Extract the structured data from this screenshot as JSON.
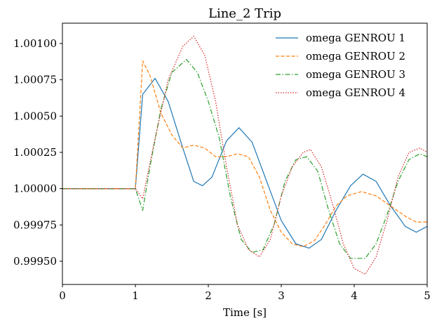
{
  "chart_data": {
    "type": "line",
    "title": "Line_2 Trip",
    "xlabel": "Time [s]",
    "ylabel": "",
    "xlim": [
      0,
      5
    ],
    "ylim": [
      0.99934,
      1.00114
    ],
    "xticks": [
      0,
      1,
      2,
      3,
      4,
      5
    ],
    "xtick_labels": [
      "0",
      "1",
      "2",
      "3",
      "4",
      "5"
    ],
    "yticks": [
      0.9995,
      0.99975,
      1.0,
      1.00025,
      1.0005,
      1.00075,
      1.001
    ],
    "ytick_labels": [
      "0.99950",
      "0.99975",
      "1.00000",
      "1.00025",
      "1.00050",
      "1.00075",
      "1.00100"
    ],
    "grid": false,
    "legend_position": "top-right",
    "series": [
      {
        "name": "omega GENROU 1",
        "color": "#1f77b4",
        "dash": "solid",
        "points": [
          [
            0,
            1.0
          ],
          [
            1.0,
            1.0
          ],
          [
            1.1,
            1.00065
          ],
          [
            1.27,
            1.00076
          ],
          [
            1.45,
            1.0006
          ],
          [
            1.65,
            1.00028
          ],
          [
            1.8,
            1.00005
          ],
          [
            1.92,
            1.00002
          ],
          [
            2.05,
            1.00008
          ],
          [
            2.25,
            1.00033
          ],
          [
            2.42,
            1.00042
          ],
          [
            2.6,
            1.00032
          ],
          [
            2.8,
            1.00005
          ],
          [
            3.0,
            0.99978
          ],
          [
            3.2,
            0.99962
          ],
          [
            3.38,
            0.99959
          ],
          [
            3.55,
            0.99965
          ],
          [
            3.75,
            0.99985
          ],
          [
            3.95,
            1.00002
          ],
          [
            4.12,
            1.0001
          ],
          [
            4.3,
            1.00005
          ],
          [
            4.5,
            0.99988
          ],
          [
            4.7,
            0.99974
          ],
          [
            4.85,
            0.9997
          ],
          [
            5.0,
            0.99974
          ]
        ]
      },
      {
        "name": "omega GENROU 2",
        "color": "#ff7f0e",
        "dash": "dashed",
        "points": [
          [
            0,
            1.0
          ],
          [
            1.0,
            1.0
          ],
          [
            1.1,
            1.00088
          ],
          [
            1.2,
            1.00078
          ],
          [
            1.35,
            1.00052
          ],
          [
            1.5,
            1.00037
          ],
          [
            1.65,
            1.00028
          ],
          [
            1.8,
            1.0003
          ],
          [
            1.95,
            1.00028
          ],
          [
            2.1,
            1.00022
          ],
          [
            2.25,
            1.00022
          ],
          [
            2.4,
            1.00024
          ],
          [
            2.55,
            1.00022
          ],
          [
            2.7,
            1.00008
          ],
          [
            2.85,
            0.99985
          ],
          [
            3.0,
            0.9997
          ],
          [
            3.15,
            0.99962
          ],
          [
            3.3,
            0.9996
          ],
          [
            3.45,
            0.99964
          ],
          [
            3.6,
            0.99975
          ],
          [
            3.75,
            0.99988
          ],
          [
            3.9,
            0.99995
          ],
          [
            4.1,
            0.99998
          ],
          [
            4.3,
            0.99995
          ],
          [
            4.5,
            0.99988
          ],
          [
            4.7,
            0.99981
          ],
          [
            4.85,
            0.99977
          ],
          [
            5.0,
            0.99977
          ]
        ]
      },
      {
        "name": "omega GENROU 3",
        "color": "#2ca02c",
        "dash": "dashdot",
        "points": [
          [
            0,
            1.0
          ],
          [
            1.0,
            1.0
          ],
          [
            1.1,
            0.99985
          ],
          [
            1.2,
            1.00015
          ],
          [
            1.35,
            1.00055
          ],
          [
            1.5,
            1.0008
          ],
          [
            1.7,
            1.00089
          ],
          [
            1.85,
            1.0008
          ],
          [
            2.0,
            1.0006
          ],
          [
            2.15,
            1.00035
          ],
          [
            2.3,
            0.99995
          ],
          [
            2.45,
            0.99965
          ],
          [
            2.6,
            0.99956
          ],
          [
            2.75,
            0.99958
          ],
          [
            2.9,
            0.99975
          ],
          [
            3.05,
            1.00005
          ],
          [
            3.2,
            1.0002
          ],
          [
            3.35,
            1.00022
          ],
          [
            3.5,
            1.00012
          ],
          [
            3.65,
            0.99985
          ],
          [
            3.8,
            0.99962
          ],
          [
            3.95,
            0.99952
          ],
          [
            4.15,
            0.99952
          ],
          [
            4.3,
            0.99962
          ],
          [
            4.45,
            0.99982
          ],
          [
            4.6,
            1.00005
          ],
          [
            4.75,
            1.0002
          ],
          [
            4.9,
            1.00024
          ],
          [
            5.0,
            1.00022
          ]
        ]
      },
      {
        "name": "omega GENROU 4",
        "color": "#d62728",
        "dash": "dotted",
        "points": [
          [
            0,
            1.0
          ],
          [
            1.0,
            1.0
          ],
          [
            1.1,
            0.99993
          ],
          [
            1.25,
            1.0003
          ],
          [
            1.45,
            1.00075
          ],
          [
            1.65,
            1.00098
          ],
          [
            1.8,
            1.00105
          ],
          [
            1.95,
            1.00092
          ],
          [
            2.1,
            1.0006
          ],
          [
            2.25,
            1.00015
          ],
          [
            2.4,
            0.99975
          ],
          [
            2.55,
            0.99958
          ],
          [
            2.7,
            0.99953
          ],
          [
            2.85,
            0.99965
          ],
          [
            3.0,
            0.99995
          ],
          [
            3.15,
            1.00015
          ],
          [
            3.3,
            1.00025
          ],
          [
            3.4,
            1.00027
          ],
          [
            3.55,
            1.00015
          ],
          [
            3.7,
            0.9999
          ],
          [
            3.85,
            0.99962
          ],
          [
            4.0,
            0.99945
          ],
          [
            4.15,
            0.99941
          ],
          [
            4.3,
            0.99953
          ],
          [
            4.45,
            0.99978
          ],
          [
            4.6,
            1.00008
          ],
          [
            4.75,
            1.00025
          ],
          [
            4.9,
            1.00028
          ],
          [
            5.0,
            1.00025
          ]
        ]
      }
    ]
  }
}
